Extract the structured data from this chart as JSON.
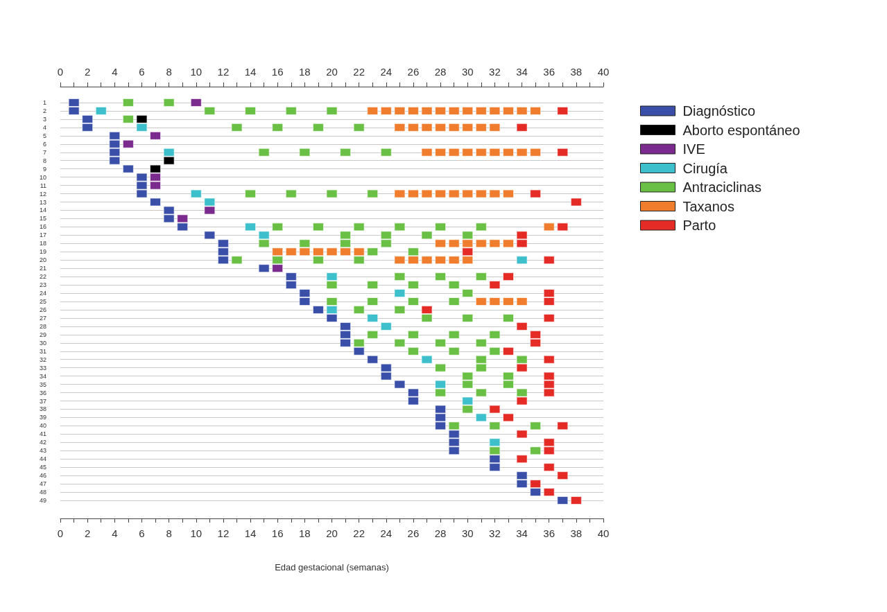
{
  "chart_data": {
    "type": "scatter",
    "xlabel": "Edad gestacional (semanas)",
    "marker": "square",
    "grid": "y",
    "legend": "top right",
    "xlim": [
      0,
      40
    ],
    "x2lim": [
      0,
      40
    ],
    "xticks": [
      0,
      {
        "value": 1,
        "label": null
      },
      2,
      {
        "value": 3,
        "label": null
      },
      4,
      {
        "value": 5,
        "label": null
      },
      6,
      {
        "value": 7,
        "label": null
      },
      8,
      {
        "value": 9,
        "label": null
      },
      10,
      {
        "value": 11,
        "label": null
      },
      12,
      {
        "value": 13,
        "label": null
      },
      14,
      {
        "value": 15,
        "label": null
      },
      16,
      {
        "value": 17,
        "label": null
      },
      18,
      {
        "value": 19,
        "label": null
      },
      20,
      {
        "value": 21,
        "label": null
      },
      22,
      {
        "value": 23,
        "label": null
      },
      24,
      {
        "value": 25,
        "label": null
      },
      26,
      {
        "value": 27,
        "label": null
      },
      28,
      {
        "value": 29,
        "label": null
      },
      30,
      {
        "value": 31,
        "label": null
      },
      32,
      {
        "value": 33,
        "label": null
      },
      34,
      {
        "value": 35,
        "label": null
      },
      36,
      {
        "value": 37,
        "label": null
      },
      38,
      {
        "value": 39,
        "label": null
      },
      40
    ],
    "x2ticks": [
      0,
      {
        "value": 1,
        "label": null
      },
      2,
      {
        "value": 3,
        "label": null
      },
      4,
      {
        "value": 5,
        "label": null
      },
      6,
      {
        "value": 7,
        "label": null
      },
      8,
      {
        "value": 9,
        "label": null
      },
      10,
      {
        "value": 11,
        "label": null
      },
      12,
      {
        "value": 13,
        "label": null
      },
      14,
      {
        "value": 15,
        "label": null
      },
      16,
      {
        "value": 17,
        "label": null
      },
      18,
      {
        "value": 19,
        "label": null
      },
      20,
      {
        "value": 21,
        "label": null
      },
      22,
      {
        "value": 23,
        "label": null
      },
      24,
      {
        "value": 25,
        "label": null
      },
      26,
      {
        "value": 27,
        "label": null
      },
      28,
      {
        "value": 29,
        "label": null
      },
      30,
      {
        "value": 31,
        "label": null
      },
      32,
      {
        "value": 33,
        "label": null
      },
      34,
      {
        "value": 35,
        "label": null
      },
      36,
      {
        "value": 37,
        "label": null
      },
      38,
      {
        "value": 39,
        "label": null
      },
      40
    ],
    "ylim": [
      49,
      1
    ],
    "yticks": [
      1,
      2,
      3,
      4,
      5,
      6,
      7,
      8,
      9,
      10,
      11,
      12,
      13,
      14,
      15,
      16,
      17,
      18,
      19,
      20,
      21,
      22,
      23,
      24,
      25,
      26,
      27,
      28,
      29,
      30,
      31,
      32,
      33,
      34,
      35,
      36,
      37,
      38,
      39,
      40,
      41,
      42,
      43,
      44,
      45,
      46,
      47,
      48,
      49
    ],
    "series": [
      {
        "name": "Diagnóstico",
        "color": "#3a4fa8",
        "x": [
          1,
          1,
          2,
          2,
          4,
          4,
          4,
          4,
          5,
          6,
          6,
          6,
          7,
          8,
          8,
          9,
          11,
          12,
          12,
          12,
          15,
          17,
          17,
          18,
          18,
          19,
          20,
          21,
          21,
          21,
          22,
          23,
          24,
          24,
          25,
          26,
          26,
          28,
          28,
          28,
          29,
          29,
          29,
          32,
          32,
          34,
          34,
          35,
          37
        ],
        "values": [
          1,
          2,
          3,
          4,
          5,
          6,
          7,
          8,
          9,
          10,
          11,
          12,
          13,
          14,
          15,
          16,
          17,
          18,
          19,
          20,
          21,
          22,
          23,
          24,
          25,
          26,
          27,
          28,
          29,
          30,
          31,
          32,
          33,
          34,
          35,
          36,
          37,
          38,
          39,
          40,
          41,
          42,
          43,
          44,
          45,
          46,
          47,
          48,
          49
        ]
      },
      {
        "name": "Aborto espontáneo",
        "color": "#000000",
        "x": [
          6,
          8,
          7
        ],
        "values": [
          3,
          8,
          9
        ]
      },
      {
        "name": "IVE",
        "color": "#7b2a8e",
        "x": [
          10,
          7,
          5,
          7,
          7,
          11,
          9,
          16
        ],
        "values": [
          1,
          5,
          6,
          10,
          11,
          14,
          15,
          21
        ]
      },
      {
        "name": "Cirugía",
        "color": "#3dbfcc",
        "x": [
          3,
          6,
          8,
          10,
          11,
          14,
          15,
          34,
          20,
          25,
          20,
          23,
          24,
          27,
          28,
          30,
          31,
          32
        ],
        "values": [
          2,
          4,
          7,
          12,
          13,
          16,
          17,
          20,
          22,
          24,
          26,
          27,
          28,
          32,
          35,
          37,
          39,
          42
        ]
      },
      {
        "name": "Antraciclinas",
        "color": "#6abf45",
        "x": [
          5,
          8,
          11,
          14,
          17,
          20,
          5,
          13,
          16,
          19,
          22,
          15,
          18,
          21,
          24,
          14,
          17,
          20,
          23,
          16,
          19,
          22,
          25,
          28,
          31,
          21,
          24,
          27,
          30,
          15,
          18,
          21,
          24,
          23,
          26,
          13,
          16,
          19,
          22,
          25,
          28,
          31,
          20,
          23,
          26,
          29,
          30,
          20,
          23,
          26,
          29,
          22,
          25,
          27,
          30,
          33,
          23,
          26,
          29,
          32,
          22,
          25,
          28,
          31,
          26,
          29,
          32,
          31,
          34,
          28,
          31,
          30,
          33,
          30,
          33,
          28,
          31,
          34,
          30,
          29,
          32,
          35,
          32,
          35
        ],
        "values": [
          1,
          1,
          2,
          2,
          2,
          2,
          3,
          4,
          4,
          4,
          4,
          7,
          7,
          7,
          7,
          12,
          12,
          12,
          12,
          16,
          16,
          16,
          16,
          16,
          16,
          17,
          17,
          17,
          17,
          18,
          18,
          18,
          18,
          19,
          19,
          20,
          20,
          20,
          20,
          22,
          22,
          22,
          23,
          23,
          23,
          23,
          24,
          25,
          25,
          25,
          25,
          26,
          26,
          27,
          27,
          27,
          29,
          29,
          29,
          29,
          30,
          30,
          30,
          30,
          31,
          31,
          31,
          32,
          32,
          33,
          33,
          34,
          34,
          35,
          35,
          36,
          36,
          36,
          38,
          40,
          40,
          40,
          43,
          43
        ]
      },
      {
        "name": "Taxanos",
        "color": "#ef7d2d",
        "x": [
          23,
          24,
          25,
          26,
          27,
          28,
          29,
          30,
          31,
          32,
          33,
          34,
          35,
          25,
          26,
          27,
          28,
          29,
          30,
          31,
          32,
          27,
          28,
          29,
          30,
          31,
          32,
          33,
          34,
          35,
          25,
          26,
          27,
          28,
          29,
          30,
          31,
          32,
          33,
          36,
          28,
          29,
          30,
          31,
          32,
          33,
          16,
          17,
          18,
          19,
          20,
          21,
          22,
          25,
          26,
          27,
          28,
          29,
          30,
          31,
          32,
          33,
          34
        ],
        "values": [
          2,
          2,
          2,
          2,
          2,
          2,
          2,
          2,
          2,
          2,
          2,
          2,
          2,
          4,
          4,
          4,
          4,
          4,
          4,
          4,
          4,
          7,
          7,
          7,
          7,
          7,
          7,
          7,
          7,
          7,
          12,
          12,
          12,
          12,
          12,
          12,
          12,
          12,
          12,
          16,
          18,
          18,
          18,
          18,
          18,
          18,
          19,
          19,
          19,
          19,
          19,
          19,
          19,
          20,
          20,
          20,
          20,
          20,
          20,
          25,
          25,
          25,
          25
        ]
      },
      {
        "name": "Parto",
        "color": "#e42b26",
        "x": [
          37,
          34,
          37,
          35,
          38,
          37,
          34,
          34,
          30,
          36,
          33,
          32,
          36,
          36,
          27,
          36,
          34,
          35,
          35,
          33,
          36,
          34,
          36,
          36,
          36,
          34,
          32,
          33,
          37,
          34,
          36,
          36,
          34,
          36,
          37,
          35,
          36,
          38
        ],
        "values": [
          2,
          4,
          7,
          12,
          13,
          16,
          17,
          18,
          19,
          20,
          22,
          23,
          24,
          25,
          26,
          27,
          28,
          29,
          30,
          31,
          32,
          33,
          34,
          35,
          36,
          37,
          38,
          39,
          40,
          41,
          42,
          43,
          44,
          45,
          46,
          47,
          48,
          49
        ]
      }
    ]
  }
}
